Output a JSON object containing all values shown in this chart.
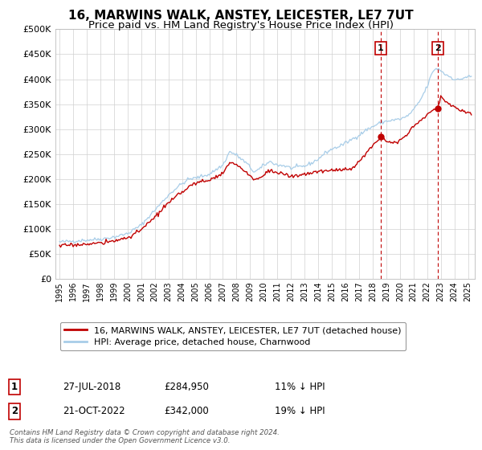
{
  "title": "16, MARWINS WALK, ANSTEY, LEICESTER, LE7 7UT",
  "subtitle": "Price paid vs. HM Land Registry's House Price Index (HPI)",
  "title_fontsize": 11,
  "subtitle_fontsize": 9.5,
  "ylim": [
    0,
    500000
  ],
  "yticks": [
    0,
    50000,
    100000,
    150000,
    200000,
    250000,
    300000,
    350000,
    400000,
    450000,
    500000
  ],
  "ytick_labels": [
    "£0",
    "£50K",
    "£100K",
    "£150K",
    "£200K",
    "£250K",
    "£300K",
    "£350K",
    "£400K",
    "£450K",
    "£500K"
  ],
  "xlim_start": 1994.7,
  "xlim_end": 2025.5,
  "xtick_years": [
    1995,
    1996,
    1997,
    1998,
    1999,
    2000,
    2001,
    2002,
    2003,
    2004,
    2005,
    2006,
    2007,
    2008,
    2009,
    2010,
    2011,
    2012,
    2013,
    2014,
    2015,
    2016,
    2017,
    2018,
    2019,
    2020,
    2021,
    2022,
    2023,
    2024,
    2025
  ],
  "hpi_color": "#a8cde8",
  "price_color": "#c00000",
  "marker_color": "#c00000",
  "dashed_line_color": "#c00000",
  "background_color": "#ffffff",
  "grid_color": "#d0d0d0",
  "legend_label_price": "16, MARWINS WALK, ANSTEY, LEICESTER, LE7 7UT (detached house)",
  "legend_label_hpi": "HPI: Average price, detached house, Charnwood",
  "sale1_date": 2018.57,
  "sale1_price": 284950,
  "sale1_label": "1",
  "sale2_date": 2022.8,
  "sale2_price": 342000,
  "sale2_label": "2",
  "footnote": "Contains HM Land Registry data © Crown copyright and database right 2024.\nThis data is licensed under the Open Government Licence v3.0.",
  "table_row1": [
    "1",
    "27-JUL-2018",
    "£284,950",
    "11% ↓ HPI"
  ],
  "table_row2": [
    "2",
    "21-OCT-2022",
    "£342,000",
    "19% ↓ HPI"
  ]
}
